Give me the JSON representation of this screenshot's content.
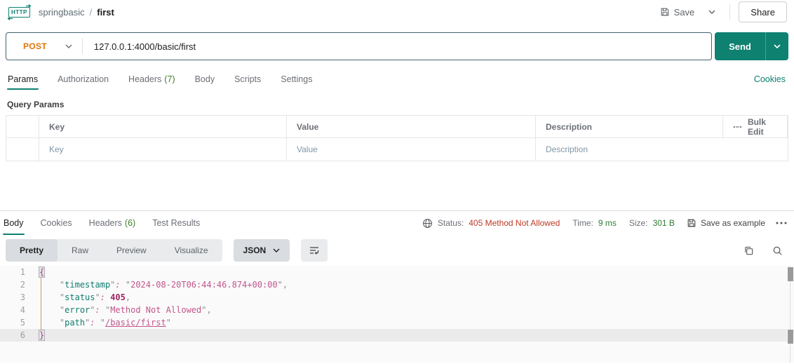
{
  "header": {
    "logo_text": "HTTP",
    "breadcrumb": {
      "collection": "springbasic",
      "separator": "/",
      "request": "first"
    },
    "save_label": "Save",
    "share_label": "Share"
  },
  "request": {
    "method": "POST",
    "url": "127.0.0.1:4000/basic/first",
    "send_label": "Send",
    "cookies_label": "Cookies"
  },
  "request_tabs": [
    {
      "label": "Params",
      "count": "",
      "active": true
    },
    {
      "label": "Authorization",
      "count": ""
    },
    {
      "label": "Headers",
      "count": "(7)"
    },
    {
      "label": "Body",
      "count": ""
    },
    {
      "label": "Scripts",
      "count": ""
    },
    {
      "label": "Settings",
      "count": ""
    }
  ],
  "params": {
    "section_title": "Query Params",
    "columns": {
      "key": "Key",
      "value": "Value",
      "description": "Description"
    },
    "bulk_edit_label": "Bulk Edit",
    "placeholder_row": {
      "key": "Key",
      "value": "Value",
      "description": "Description"
    }
  },
  "response": {
    "tabs": [
      {
        "label": "Body",
        "count": "",
        "active": true
      },
      {
        "label": "Cookies",
        "count": ""
      },
      {
        "label": "Headers",
        "count": "(6)"
      },
      {
        "label": "Test Results",
        "count": ""
      }
    ],
    "meta": {
      "status_label": "Status:",
      "status_value": "405 Method Not Allowed",
      "time_label": "Time:",
      "time_value": "9 ms",
      "size_label": "Size:",
      "size_value": "301 B",
      "save_example_label": "Save as example"
    },
    "view_tabs": [
      {
        "label": "Pretty",
        "active": true
      },
      {
        "label": "Raw"
      },
      {
        "label": "Preview"
      },
      {
        "label": "Visualize"
      }
    ],
    "format_selected": "JSON",
    "code": {
      "language": "json",
      "lines": [
        {
          "n": "1",
          "tokens": [
            {
              "c": "brace",
              "t": "{"
            }
          ]
        },
        {
          "n": "2",
          "tokens": [
            {
              "c": "plain",
              "t": "    "
            },
            {
              "c": "q",
              "t": "\""
            },
            {
              "c": "key",
              "t": "timestamp"
            },
            {
              "c": "q",
              "t": "\""
            },
            {
              "c": "colon",
              "t": ":"
            },
            {
              "c": "plain",
              "t": " "
            },
            {
              "c": "q",
              "t": "\""
            },
            {
              "c": "str",
              "t": "2024-08-20T06:44:46.874+00:00"
            },
            {
              "c": "q",
              "t": "\""
            },
            {
              "c": "pun",
              "t": ","
            }
          ]
        },
        {
          "n": "3",
          "tokens": [
            {
              "c": "plain",
              "t": "    "
            },
            {
              "c": "q",
              "t": "\""
            },
            {
              "c": "key",
              "t": "status"
            },
            {
              "c": "q",
              "t": "\""
            },
            {
              "c": "colon",
              "t": ":"
            },
            {
              "c": "plain",
              "t": " "
            },
            {
              "c": "num",
              "t": "405"
            },
            {
              "c": "pun",
              "t": ","
            }
          ]
        },
        {
          "n": "4",
          "tokens": [
            {
              "c": "plain",
              "t": "    "
            },
            {
              "c": "q",
              "t": "\""
            },
            {
              "c": "key",
              "t": "error"
            },
            {
              "c": "q",
              "t": "\""
            },
            {
              "c": "colon",
              "t": ":"
            },
            {
              "c": "plain",
              "t": " "
            },
            {
              "c": "q",
              "t": "\""
            },
            {
              "c": "str",
              "t": "Method Not Allowed"
            },
            {
              "c": "q",
              "t": "\""
            },
            {
              "c": "pun",
              "t": ","
            }
          ]
        },
        {
          "n": "5",
          "tokens": [
            {
              "c": "plain",
              "t": "    "
            },
            {
              "c": "q",
              "t": "\""
            },
            {
              "c": "key",
              "t": "path"
            },
            {
              "c": "q",
              "t": "\""
            },
            {
              "c": "colon",
              "t": ":"
            },
            {
              "c": "plain",
              "t": " "
            },
            {
              "c": "q",
              "t": "\""
            },
            {
              "c": "link",
              "t": "/basic/first"
            },
            {
              "c": "q",
              "t": "\""
            }
          ]
        },
        {
          "n": "6",
          "highlight": true,
          "tokens": [
            {
              "c": "brace",
              "t": "}"
            }
          ]
        }
      ]
    }
  },
  "colors": {
    "accent_teal": "#0E8171",
    "method_orange": "#E1740B",
    "status_red": "#BE3A26",
    "success_green": "#2E7D32",
    "count_green": "#3E7D2C"
  }
}
